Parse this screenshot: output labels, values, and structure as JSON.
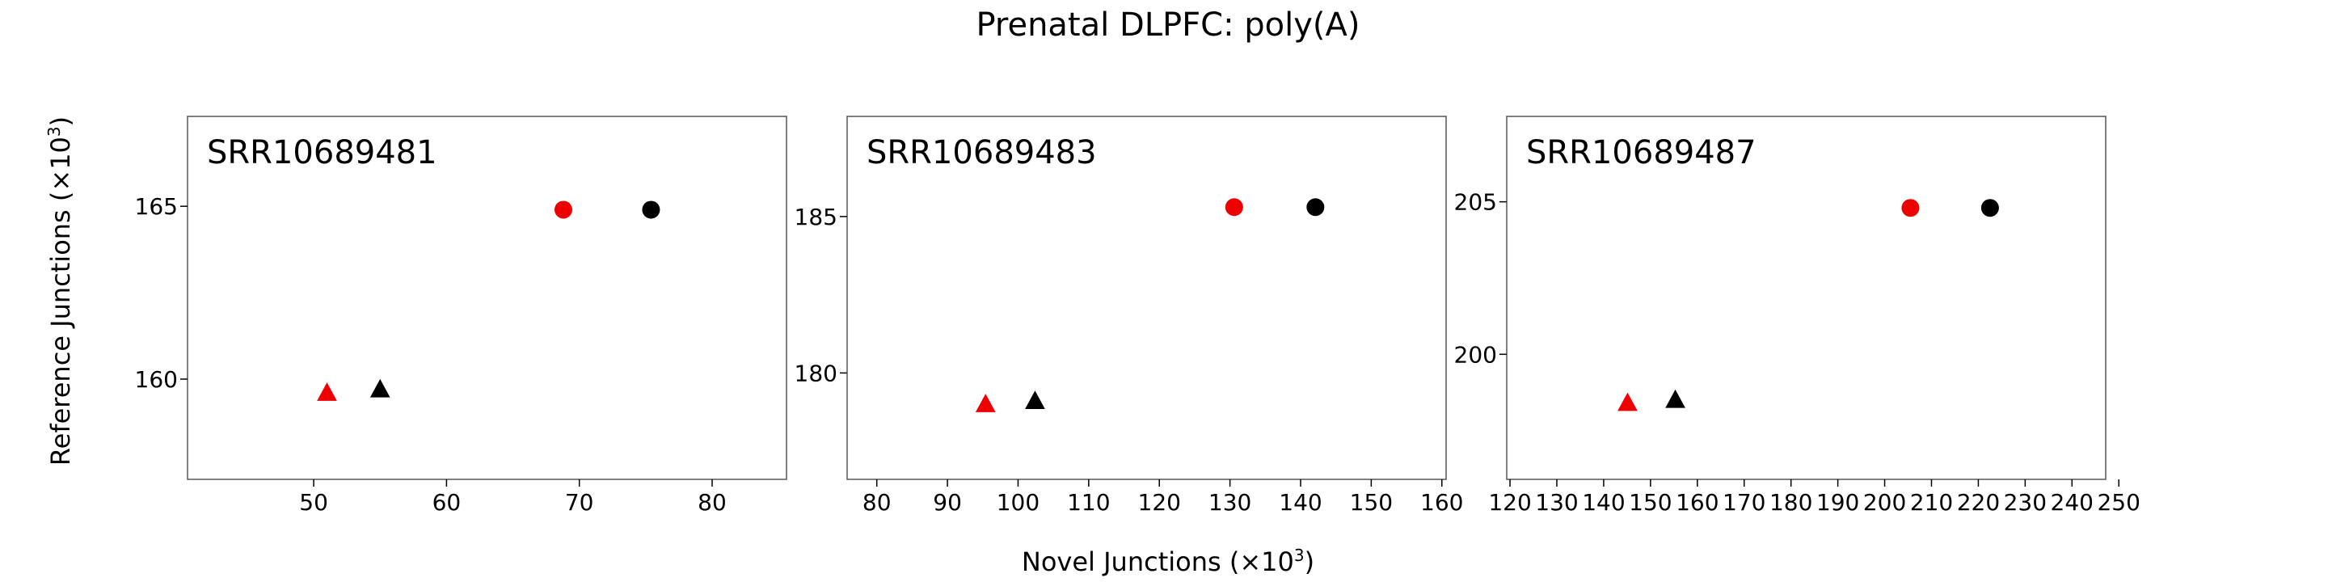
{
  "figure": {
    "title": "Prenatal DLPFC: poly(A)",
    "xlabel_prefix": "Novel Junctions (×10",
    "xlabel_exp": "3",
    "xlabel_suffix": ")",
    "ylabel_prefix": "Reference Junctions (×10",
    "ylabel_exp": "3",
    "ylabel_suffix": ")"
  },
  "colors": {
    "red": "#ee0000",
    "black": "#000000",
    "axes": "#555555"
  },
  "chart_data": [
    {
      "type": "scatter",
      "panel_label": "SRR10689481",
      "xlim": [
        40.5,
        85.6
      ],
      "ylim": [
        157.1,
        167.6
      ],
      "xticks": [
        50,
        60,
        70,
        80
      ],
      "yticks": [
        160,
        165
      ],
      "series": [
        {
          "color": "red",
          "marker": "circle",
          "x": 68.8,
          "y": 164.9
        },
        {
          "color": "black",
          "marker": "circle",
          "x": 75.4,
          "y": 164.9
        },
        {
          "color": "red",
          "marker": "triangle",
          "x": 51.0,
          "y": 159.6
        },
        {
          "color": "black",
          "marker": "triangle",
          "x": 55.0,
          "y": 159.7
        }
      ]
    },
    {
      "type": "scatter",
      "panel_label": "SRR10689483",
      "xlim": [
        75.8,
        160.6
      ],
      "ylim": [
        176.6,
        188.2
      ],
      "xticks": [
        80,
        90,
        100,
        110,
        120,
        130,
        140,
        150,
        160
      ],
      "yticks": [
        180,
        185
      ],
      "series": [
        {
          "color": "red",
          "marker": "circle",
          "x": 130.6,
          "y": 185.3
        },
        {
          "color": "black",
          "marker": "circle",
          "x": 142.1,
          "y": 185.3
        },
        {
          "color": "red",
          "marker": "triangle",
          "x": 95.4,
          "y": 179.0
        },
        {
          "color": "black",
          "marker": "triangle",
          "x": 102.4,
          "y": 179.1
        }
      ]
    },
    {
      "type": "scatter",
      "panel_label": "SRR10689487",
      "xlim": [
        119.3,
        247.2
      ],
      "ylim": [
        195.9,
        207.8
      ],
      "xticks": [
        120,
        130,
        140,
        150,
        160,
        170,
        180,
        190,
        200,
        210,
        220,
        230,
        240,
        250
      ],
      "yticks": [
        200,
        205
      ],
      "series": [
        {
          "color": "red",
          "marker": "circle",
          "x": 205.5,
          "y": 204.8
        },
        {
          "color": "black",
          "marker": "circle",
          "x": 222.5,
          "y": 204.8
        },
        {
          "color": "red",
          "marker": "triangle",
          "x": 145.1,
          "y": 198.4
        },
        {
          "color": "black",
          "marker": "triangle",
          "x": 155.3,
          "y": 198.5
        }
      ]
    }
  ]
}
